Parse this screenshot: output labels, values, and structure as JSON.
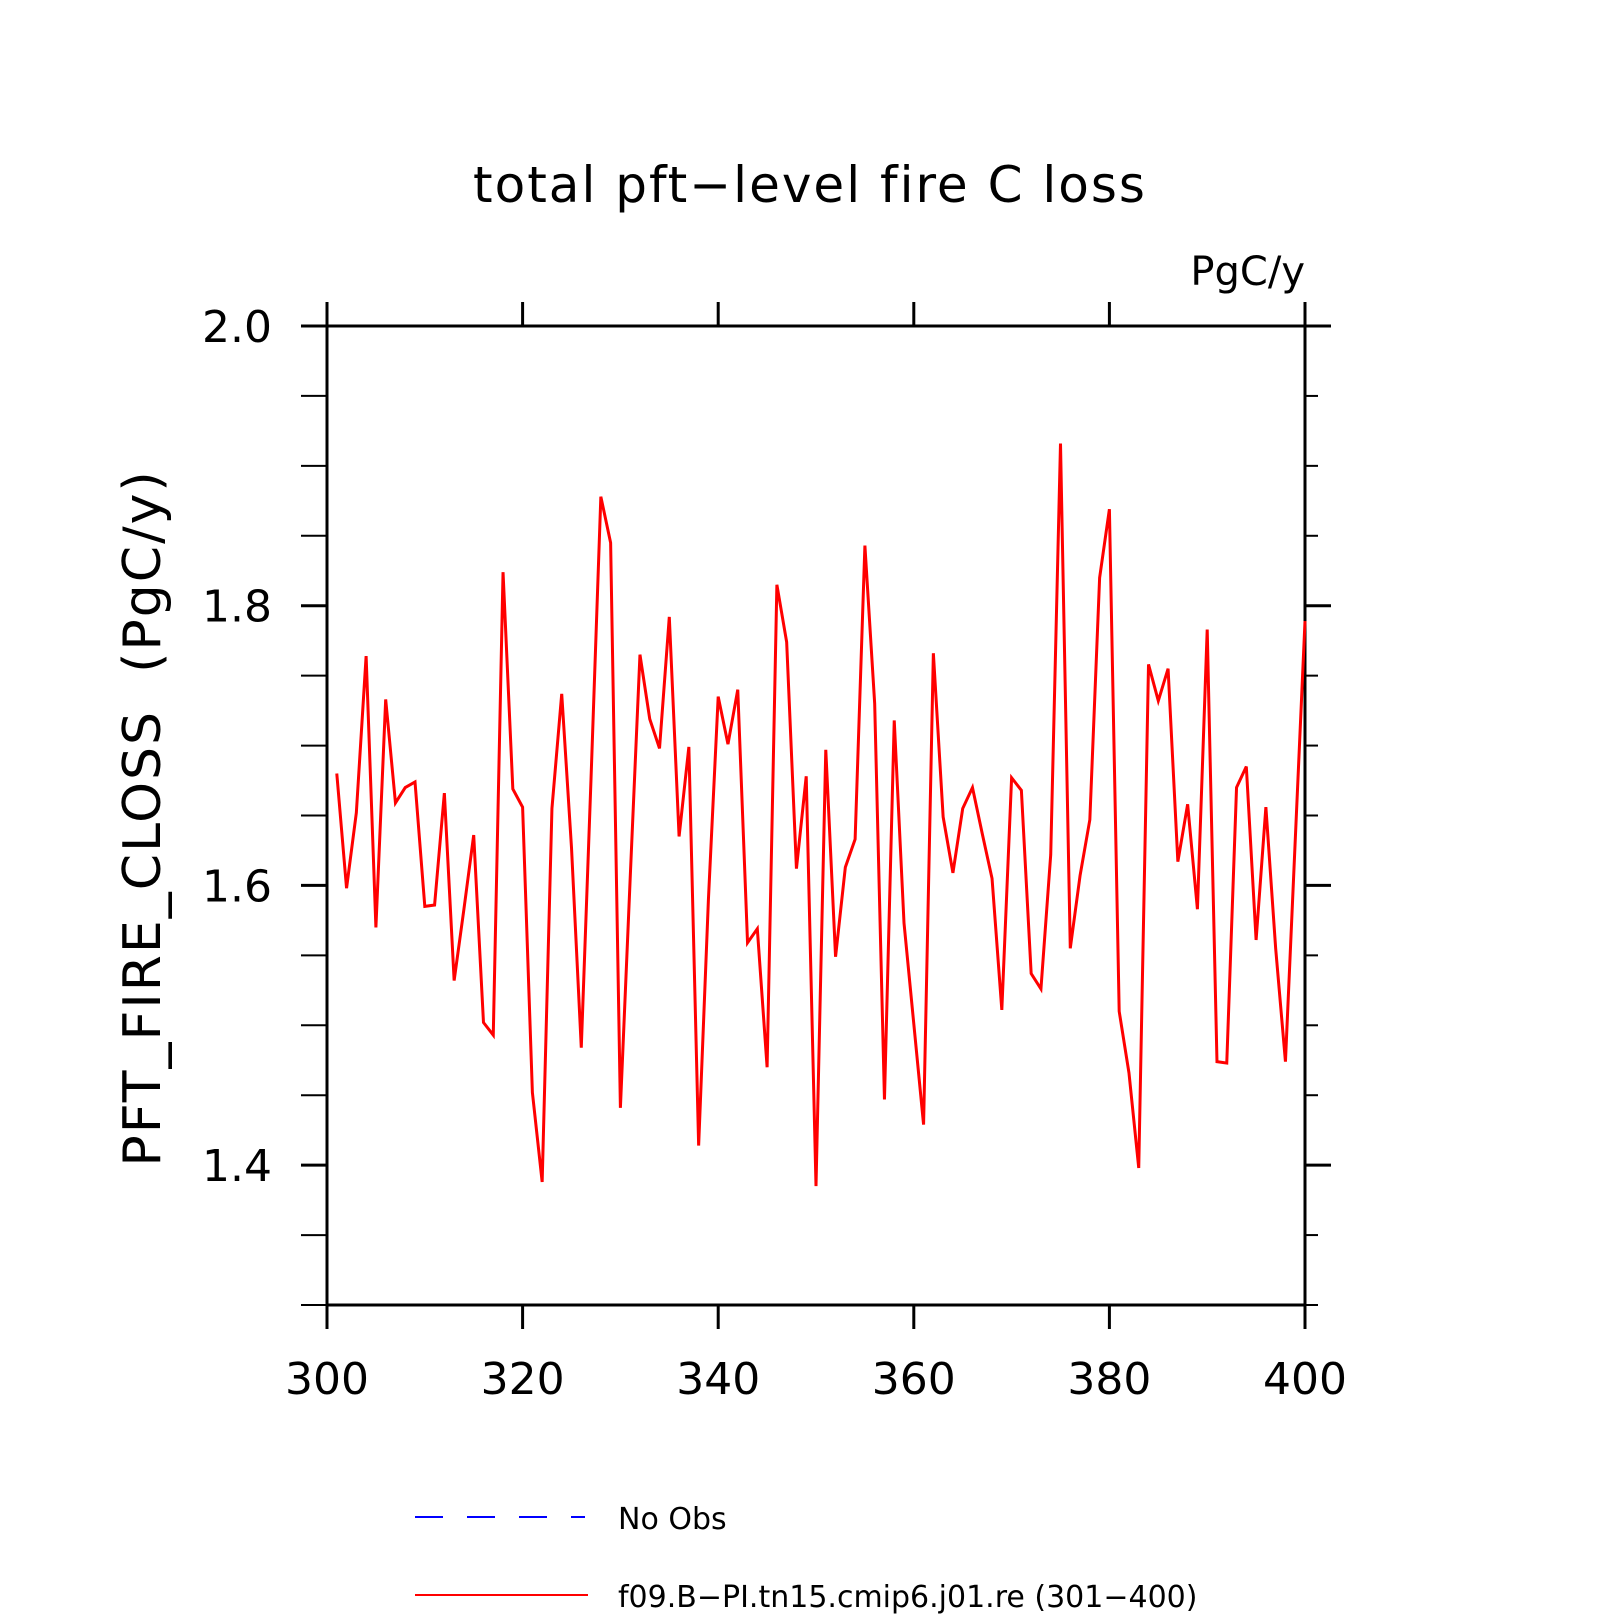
{
  "chart_data": {
    "type": "line",
    "title": "total pft−level fire C loss",
    "units_label": "PgC/y",
    "ylabel": "PFT_FIRE_CLOSS  (PgC/y)",
    "xlabel": "",
    "xlim": [
      300,
      400
    ],
    "ylim": [
      1.3,
      2.0
    ],
    "x_ticks": [
      300,
      320,
      340,
      360,
      380,
      400
    ],
    "x_tick_labels": [
      "300",
      "320",
      "340",
      "360",
      "380",
      "400"
    ],
    "y_ticks": [
      1.4,
      1.6,
      1.8,
      2.0
    ],
    "y_tick_labels": [
      "1.4",
      "1.6",
      "1.8",
      "2.0"
    ],
    "y_minor_step": 0.05,
    "x_minor_step": 20,
    "grid": false,
    "legend_position": "bottom-center",
    "legend": [
      {
        "label": "No Obs",
        "color": "#0000ff",
        "dash": "dashed"
      },
      {
        "label": "f09.B−PI.tn15.cmip6.j01.re (301−400)",
        "color": "#ff0000",
        "dash": "solid"
      }
    ],
    "series": [
      {
        "name": "f09.B−PI.tn15.cmip6.j01.re (301−400)",
        "color": "#ff0000",
        "x_start": 301,
        "x_step": 1,
        "values": [
          1.68,
          1.598,
          1.652,
          1.764,
          1.57,
          1.733,
          1.659,
          1.67,
          1.674,
          1.585,
          1.586,
          1.666,
          1.532,
          1.583,
          1.636,
          1.502,
          1.493,
          1.824,
          1.669,
          1.656,
          1.452,
          1.388,
          1.655,
          1.737,
          1.627,
          1.484,
          1.677,
          1.878,
          1.845,
          1.441,
          1.605,
          1.765,
          1.719,
          1.698,
          1.792,
          1.635,
          1.699,
          1.414,
          1.59,
          1.735,
          1.701,
          1.74,
          1.559,
          1.569,
          1.47,
          1.815,
          1.774,
          1.612,
          1.678,
          1.385,
          1.697,
          1.549,
          1.613,
          1.633,
          1.843,
          1.73,
          1.447,
          1.718,
          1.573,
          1.501,
          1.429,
          1.766,
          1.649,
          1.609,
          1.655,
          1.67,
          1.637,
          1.605,
          1.511,
          1.677,
          1.668,
          1.537,
          1.526,
          1.622,
          1.916,
          1.555,
          1.607,
          1.647,
          1.82,
          1.869,
          1.51,
          1.466,
          1.398,
          1.758,
          1.732,
          1.755,
          1.617,
          1.658,
          1.583,
          1.783,
          1.474,
          1.473,
          1.67,
          1.685,
          1.561,
          1.656,
          1.555,
          1.474,
          1.632,
          1.789
        ]
      }
    ]
  }
}
